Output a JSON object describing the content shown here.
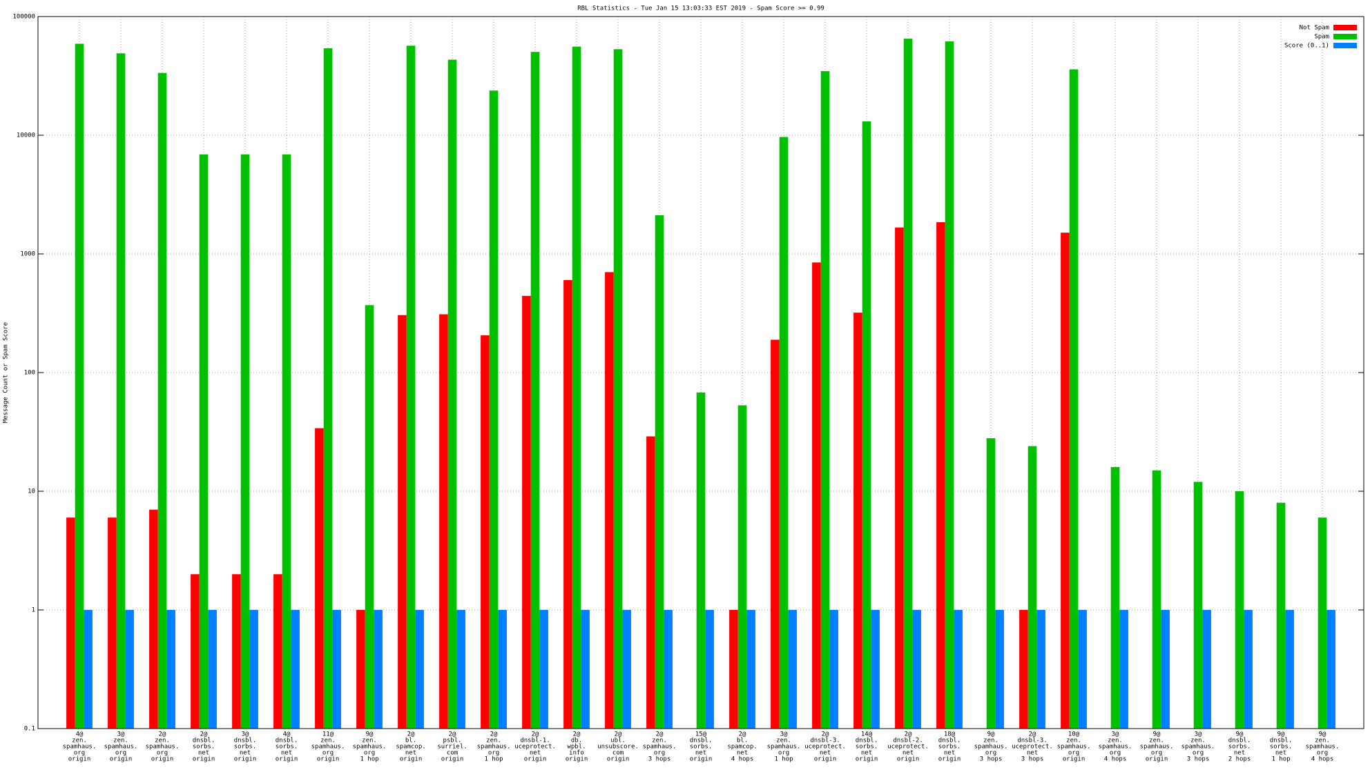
{
  "chart_data": {
    "type": "bar",
    "title": "RBL Statistics - Tue Jan 15 13:03:33 EST 2019 - Spam Score >= 0.99",
    "y_label": "Message Count or Spam Score",
    "log_scale": true,
    "grid": true,
    "legend": "top-right",
    "ylim": [
      0.1,
      100000
    ],
    "yticks": [
      0.1,
      1,
      10,
      100,
      1000,
      10000,
      100000
    ],
    "categories": [
      [
        "4@",
        "zen.",
        "spamhaus.",
        "org",
        "origin"
      ],
      [
        "3@",
        "zen.",
        "spamhaus.",
        "org",
        "origin"
      ],
      [
        "2@",
        "zen.",
        "spamhaus.",
        "org",
        "origin"
      ],
      [
        "2@",
        "dnsbl.",
        "sorbs.",
        "net",
        "origin"
      ],
      [
        "3@",
        "dnsbl.",
        "sorbs.",
        "net",
        "origin"
      ],
      [
        "4@",
        "dnsbl.",
        "sorbs.",
        "net",
        "origin"
      ],
      [
        "11@",
        "zen.",
        "spamhaus.",
        "org",
        "origin"
      ],
      [
        "9@",
        "zen.",
        "spamhaus.",
        "org",
        "1 hop"
      ],
      [
        "2@",
        "bl.",
        "spamcop.",
        "net",
        "origin"
      ],
      [
        "2@",
        "psbl.",
        "surriel.",
        "com",
        "origin"
      ],
      [
        "2@",
        "zen.",
        "spamhaus.",
        "org",
        "1 hop"
      ],
      [
        "2@",
        "dnsbl-1.",
        "uceprotect.",
        "net",
        "origin"
      ],
      [
        "2@",
        "db.",
        "wpbl.",
        "info",
        "origin"
      ],
      [
        "2@",
        "ubl.",
        "unsubscore.",
        "com",
        "origin"
      ],
      [
        "2@",
        "zen.",
        "spamhaus.",
        "org",
        "3 hops"
      ],
      [
        "15@",
        "dnsbl.",
        "sorbs.",
        "net",
        "origin"
      ],
      [
        "2@",
        "bl.",
        "spamcop.",
        "net",
        "4 hops"
      ],
      [
        "3@",
        "zen.",
        "spamhaus.",
        "org",
        "1 hop"
      ],
      [
        "2@",
        "dnsbl-3.",
        "uceprotect.",
        "net",
        "origin"
      ],
      [
        "14@",
        "dnsbl.",
        "sorbs.",
        "net",
        "origin"
      ],
      [
        "2@",
        "dnsbl-2.",
        "uceprotect.",
        "net",
        "origin"
      ],
      [
        "18@",
        "dnsbl.",
        "sorbs.",
        "net",
        "origin"
      ],
      [
        "9@",
        "zen.",
        "spamhaus.",
        "org",
        "3 hops"
      ],
      [
        "2@",
        "dnsbl-3.",
        "uceprotect.",
        "net",
        "3 hops"
      ],
      [
        "10@",
        "zen.",
        "spamhaus.",
        "org",
        "origin"
      ],
      [
        "3@",
        "zen.",
        "spamhaus.",
        "org",
        "4 hops"
      ],
      [
        "9@",
        "zen.",
        "spamhaus.",
        "org",
        "origin"
      ],
      [
        "3@",
        "zen.",
        "spamhaus.",
        "org",
        "3 hops"
      ],
      [
        "9@",
        "dnsbl.",
        "sorbs.",
        "net",
        "2 hops"
      ],
      [
        "9@",
        "dnsbl.",
        "sorbs.",
        "net",
        "1 hop"
      ],
      [
        "9@",
        "zen.",
        "spamhaus.",
        "org",
        "4 hops"
      ]
    ],
    "series": [
      {
        "name": "Not Spam",
        "color": "#ff0000",
        "values": [
          6,
          6,
          7,
          2,
          2,
          2,
          34,
          1,
          305,
          310,
          206,
          443,
          602,
          702,
          29,
          null,
          1,
          189,
          847,
          320,
          1670,
          1850,
          null,
          1,
          1510,
          null,
          null,
          null,
          null,
          null,
          null
        ]
      },
      {
        "name": "Spam",
        "color": "#00c000",
        "values": [
          59000,
          49000,
          33500,
          6900,
          6900,
          6900,
          54000,
          370,
          56800,
          43300,
          23800,
          50400,
          55800,
          53100,
          2120,
          68,
          53,
          9670,
          34700,
          13100,
          65100,
          61800,
          28,
          24,
          35900,
          16,
          15,
          12,
          10,
          8,
          6
        ]
      },
      {
        "name": "Score (0..1)",
        "color": "#0080ff",
        "values": [
          1,
          1,
          1,
          1,
          1,
          1,
          1,
          1,
          1,
          1,
          1,
          1,
          1,
          1,
          1,
          1,
          1,
          1,
          1,
          1,
          1,
          1,
          1,
          1,
          1,
          1,
          1,
          1,
          1,
          1,
          1
        ]
      }
    ]
  }
}
